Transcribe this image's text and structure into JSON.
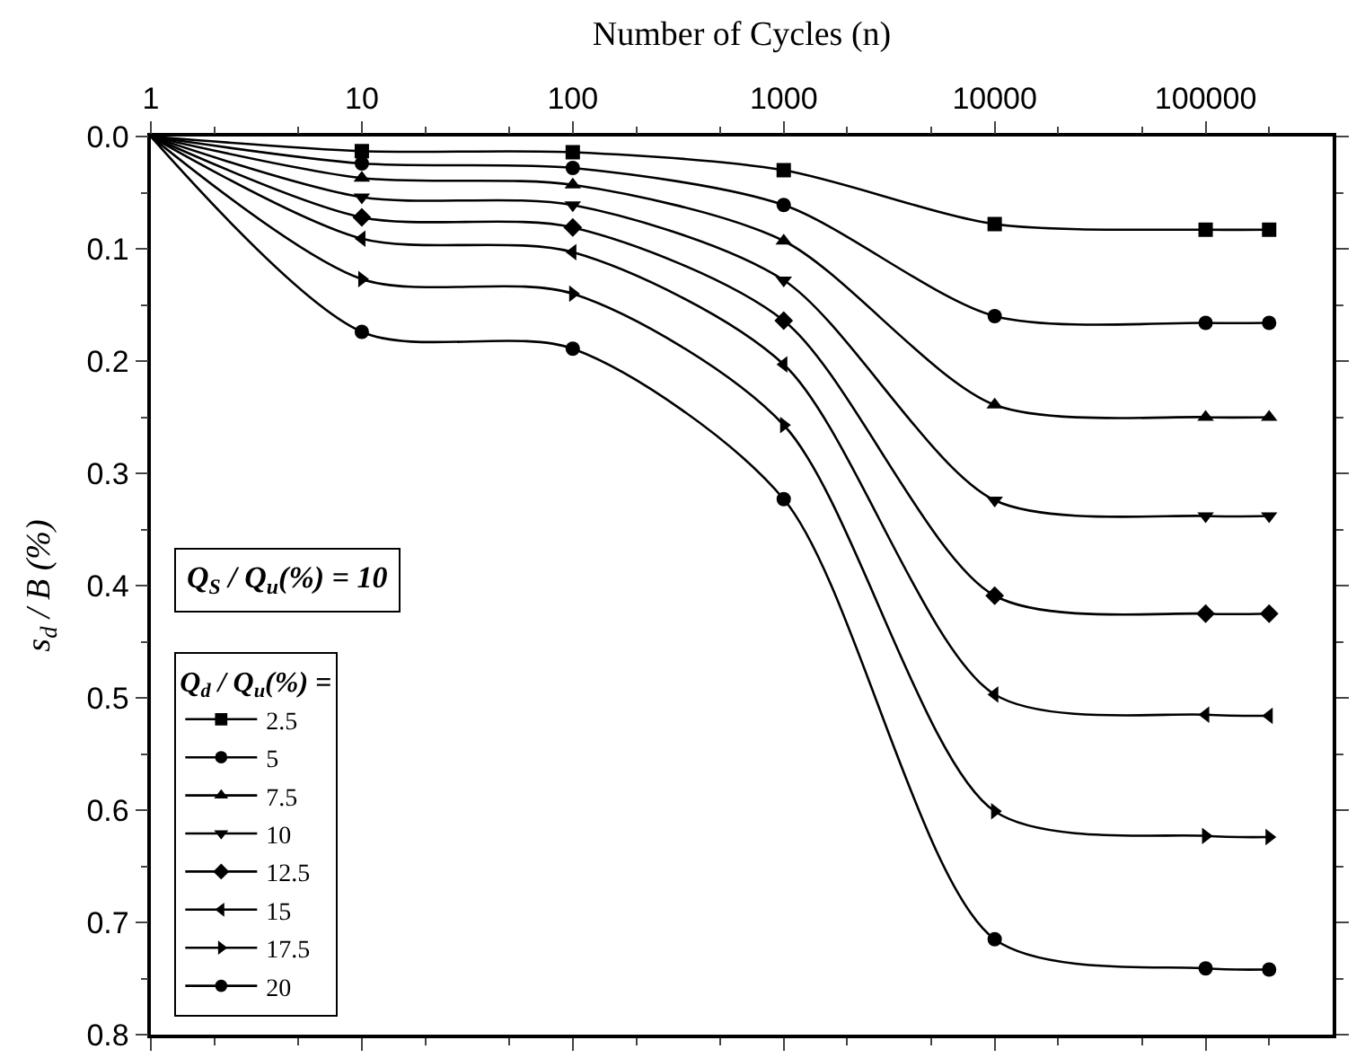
{
  "chart_data": {
    "type": "line",
    "xlabel": "Number of Cycles (n)",
    "ylabel": "s$_{d}$ / B (%)",
    "legend_title": "Q$_{d}$ / Q$_{u}$(%) =",
    "annotations": [
      "Q$_{S}$ / Q$_{u}$(%) = 10"
    ],
    "x": [
      1,
      10,
      100,
      1000,
      10000,
      100000,
      200000
    ],
    "xlim": [
      1,
      400000
    ],
    "xticks": [
      1,
      10,
      100,
      1000,
      10000,
      100000
    ],
    "ylim": [
      0.8,
      0
    ],
    "yticks": [
      {
        "value": 0,
        "label": "0.0"
      },
      0.1,
      0.2,
      0.3,
      0.4,
      0.5,
      0.6,
      0.7,
      0.8
    ],
    "log": "x",
    "legend": "bottom left",
    "line_style": "solid",
    "series": [
      {
        "name": "2.5",
        "color": "#000000",
        "marker": "square",
        "values": [
          0,
          0.013,
          0.014,
          0.03,
          0.078,
          0.083,
          0.083
        ]
      },
      {
        "name": "5",
        "color": "#000000",
        "marker": "circle",
        "values": [
          0,
          0.024,
          0.028,
          0.061,
          0.16,
          0.166,
          0.166
        ]
      },
      {
        "name": "7.5",
        "color": "#000000",
        "marker": "triangle",
        "values": [
          0,
          0.037,
          0.043,
          0.093,
          0.239,
          0.25,
          0.25
        ]
      },
      {
        "name": "10",
        "color": "#000000",
        "marker": "triangle-down",
        "values": [
          0,
          0.054,
          0.061,
          0.128,
          0.324,
          0.338,
          0.338
        ]
      },
      {
        "name": "12.5",
        "color": "#000000",
        "marker": "diamond",
        "values": [
          0,
          0.072,
          0.081,
          0.164,
          0.409,
          0.425,
          0.425
        ]
      },
      {
        "name": "15",
        "color": "#000000",
        "marker": "triangle-left",
        "values": [
          0,
          0.091,
          0.103,
          0.203,
          0.497,
          0.515,
          0.516
        ]
      },
      {
        "name": "17.5",
        "color": "#000000",
        "marker": "triangle-right",
        "values": [
          0,
          0.127,
          0.14,
          0.257,
          0.601,
          0.623,
          0.624
        ]
      },
      {
        "name": "20",
        "color": "#000000",
        "marker": "circle",
        "values": [
          0,
          0.174,
          0.189,
          0.323,
          0.715,
          0.741,
          0.742
        ]
      }
    ]
  }
}
